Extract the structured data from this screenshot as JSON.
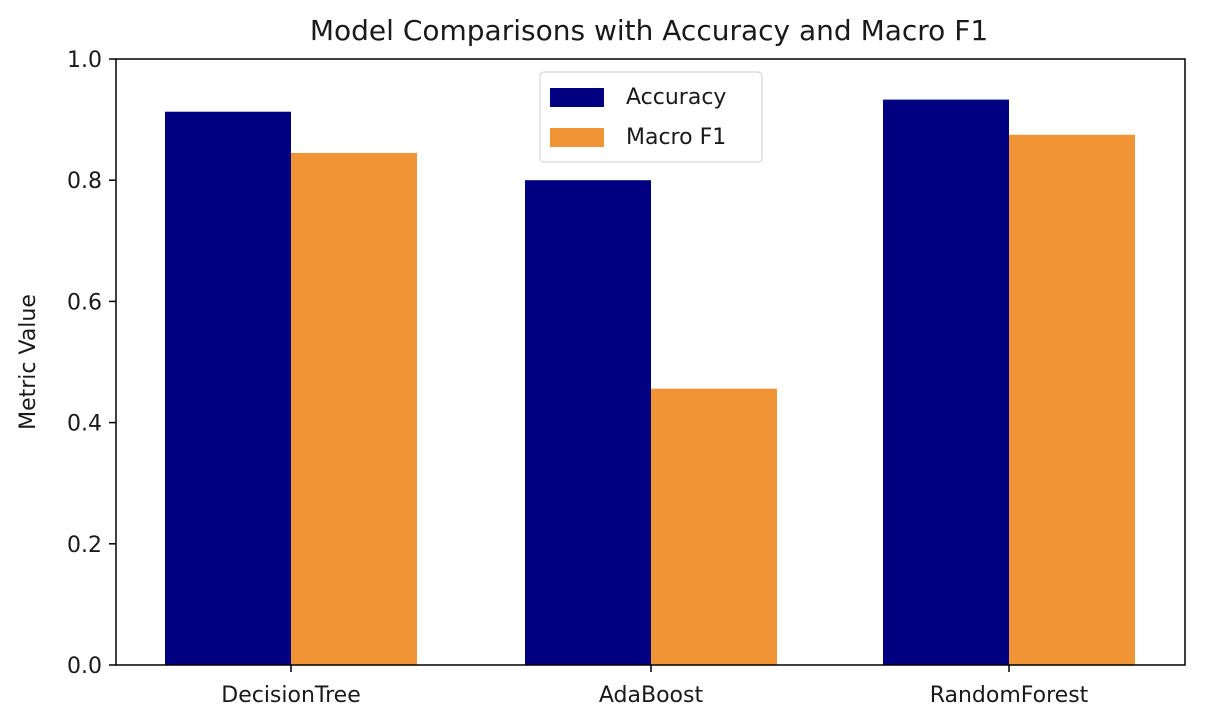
{
  "colors": {
    "accuracy": "#000080",
    "macro_f1": "#f09436",
    "axis": "#000000",
    "background": "#ffffff"
  },
  "chart_data": {
    "type": "bar",
    "title": "Model Comparisons with Accuracy and Macro F1",
    "xlabel": "",
    "ylabel": "Metric Value",
    "categories": [
      "DecisionTree",
      "AdaBoost",
      "RandomForest"
    ],
    "series": [
      {
        "name": "Accuracy",
        "values": [
          0.913,
          0.8,
          0.933
        ]
      },
      {
        "name": "Macro F1",
        "values": [
          0.845,
          0.456,
          0.875
        ]
      }
    ],
    "ylim": [
      0,
      1.0
    ],
    "yticks": [
      "0.0",
      "0.2",
      "0.4",
      "0.6",
      "0.8",
      "1.0"
    ],
    "grid": false,
    "legend": "top-center"
  }
}
